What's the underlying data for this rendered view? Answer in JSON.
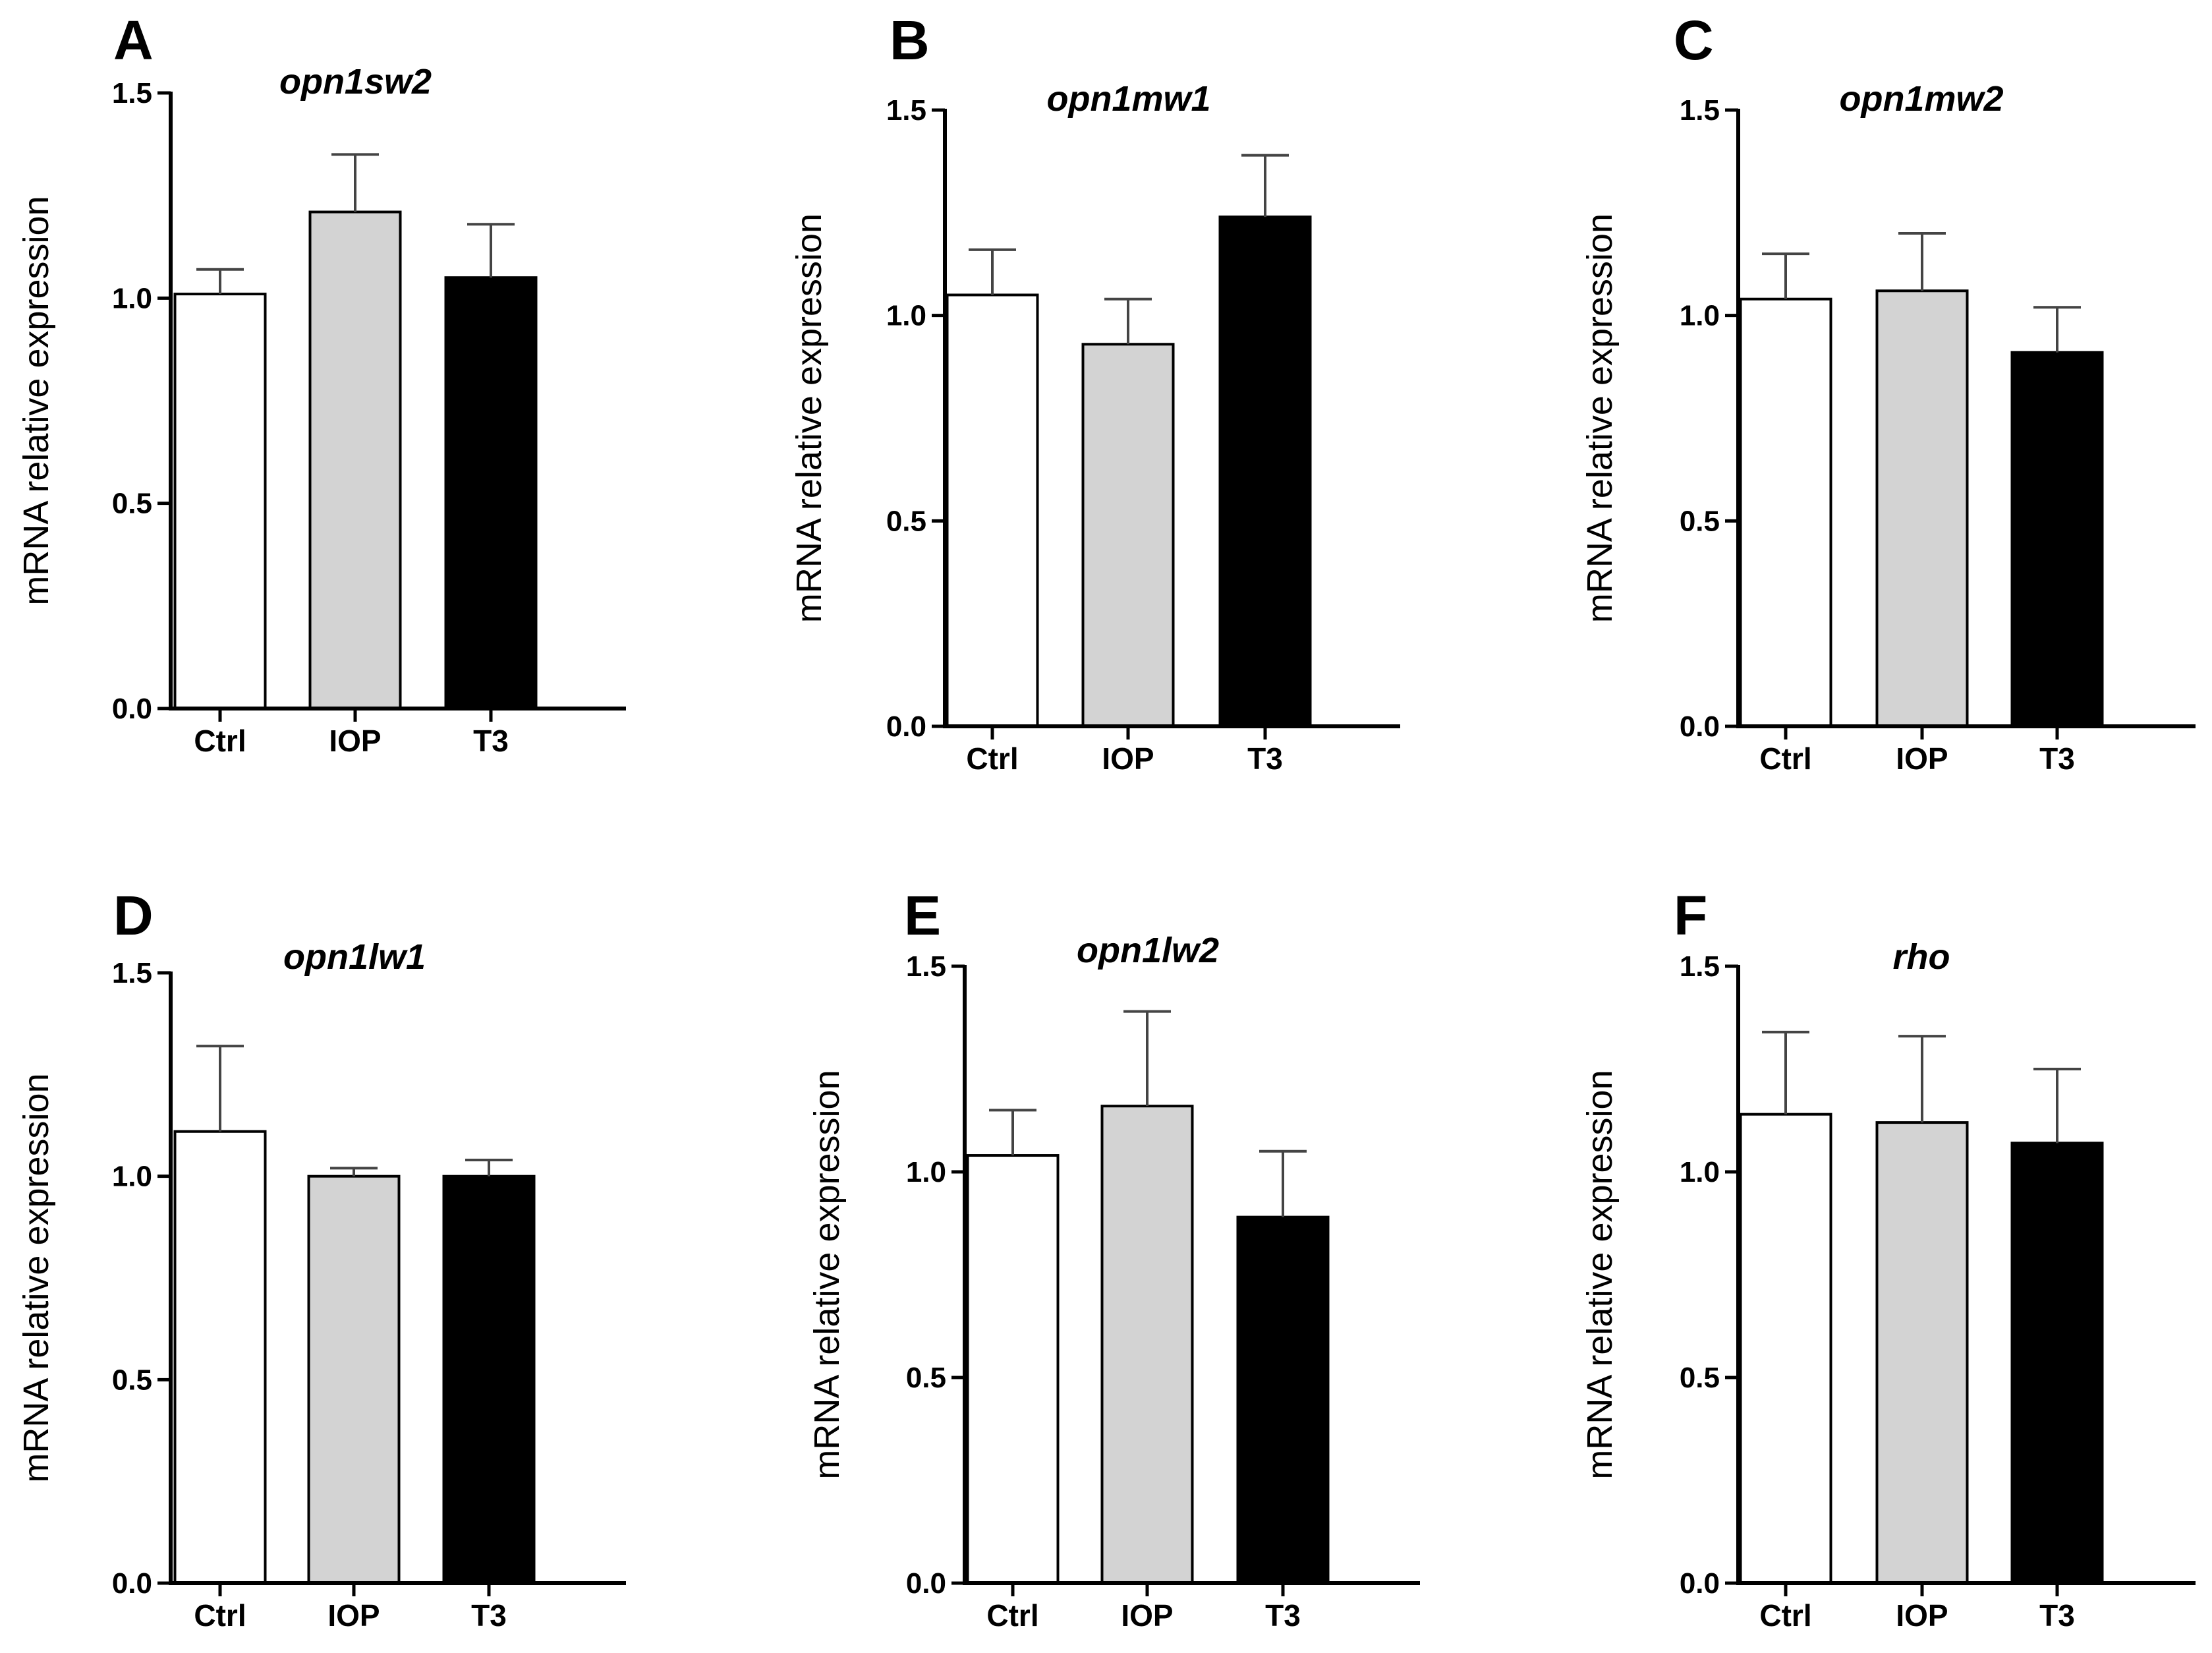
{
  "chart_data": [
    {
      "type": "bar",
      "panel": "A",
      "title": "opn1sw2",
      "categories": [
        "Ctrl",
        "IOP",
        "T3"
      ],
      "values": [
        1.01,
        1.21,
        1.05
      ],
      "errors": [
        0.06,
        0.14,
        0.13
      ],
      "colors": [
        "#ffffff",
        "#d3d3d3",
        "#000000"
      ],
      "ylabel": "mRNA relative expression",
      "ylim": [
        0,
        1.5
      ],
      "yticks": [
        "0.0",
        "0.5",
        "1.0",
        "1.5"
      ]
    },
    {
      "type": "bar",
      "panel": "B",
      "title": "opn1mw1",
      "categories": [
        "Ctrl",
        "IOP",
        "T3"
      ],
      "values": [
        1.05,
        0.93,
        1.24
      ],
      "errors": [
        0.11,
        0.11,
        0.15
      ],
      "colors": [
        "#ffffff",
        "#d3d3d3",
        "#000000"
      ],
      "ylabel": "mRNA relative expression",
      "ylim": [
        0,
        1.5
      ],
      "yticks": [
        "0.0",
        "0.5",
        "1.0",
        "1.5"
      ]
    },
    {
      "type": "bar",
      "panel": "C",
      "title": "opn1mw2",
      "categories": [
        "Ctrl",
        "IOP",
        "T3"
      ],
      "values": [
        1.04,
        1.06,
        0.91
      ],
      "errors": [
        0.11,
        0.14,
        0.11
      ],
      "colors": [
        "#ffffff",
        "#d3d3d3",
        "#000000"
      ],
      "ylabel": "mRNA relative expression",
      "ylim": [
        0,
        1.5
      ],
      "yticks": [
        "0.0",
        "0.5",
        "1.0",
        "1.5"
      ]
    },
    {
      "type": "bar",
      "panel": "D",
      "title": "opn1lw1",
      "categories": [
        "Ctrl",
        "IOP",
        "T3"
      ],
      "values": [
        1.11,
        1.0,
        1.0
      ],
      "errors": [
        0.21,
        0.02,
        0.04
      ],
      "colors": [
        "#ffffff",
        "#d3d3d3",
        "#000000"
      ],
      "ylabel": "mRNA relative expression",
      "ylim": [
        0,
        1.5
      ],
      "yticks": [
        "0.0",
        "0.5",
        "1.0",
        "1.5"
      ]
    },
    {
      "type": "bar",
      "panel": "E",
      "title": "opn1lw2",
      "categories": [
        "Ctrl",
        "IOP",
        "T3"
      ],
      "values": [
        1.04,
        1.16,
        0.89
      ],
      "errors": [
        0.11,
        0.23,
        0.16
      ],
      "colors": [
        "#ffffff",
        "#d3d3d3",
        "#000000"
      ],
      "ylabel": "mRNA relative expression",
      "ylim": [
        0,
        1.5
      ],
      "yticks": [
        "0.0",
        "0.5",
        "1.0",
        "1.5"
      ]
    },
    {
      "type": "bar",
      "panel": "F",
      "title": "rho",
      "categories": [
        "Ctrl",
        "IOP",
        "T3"
      ],
      "values": [
        1.14,
        1.12,
        1.07
      ],
      "errors": [
        0.2,
        0.21,
        0.18
      ],
      "colors": [
        "#ffffff",
        "#d3d3d3",
        "#000000"
      ],
      "ylabel": "mRNA relative expression",
      "ylim": [
        0,
        1.5
      ],
      "yticks": [
        "0.0",
        "0.5",
        "1.0",
        "1.5"
      ]
    }
  ]
}
